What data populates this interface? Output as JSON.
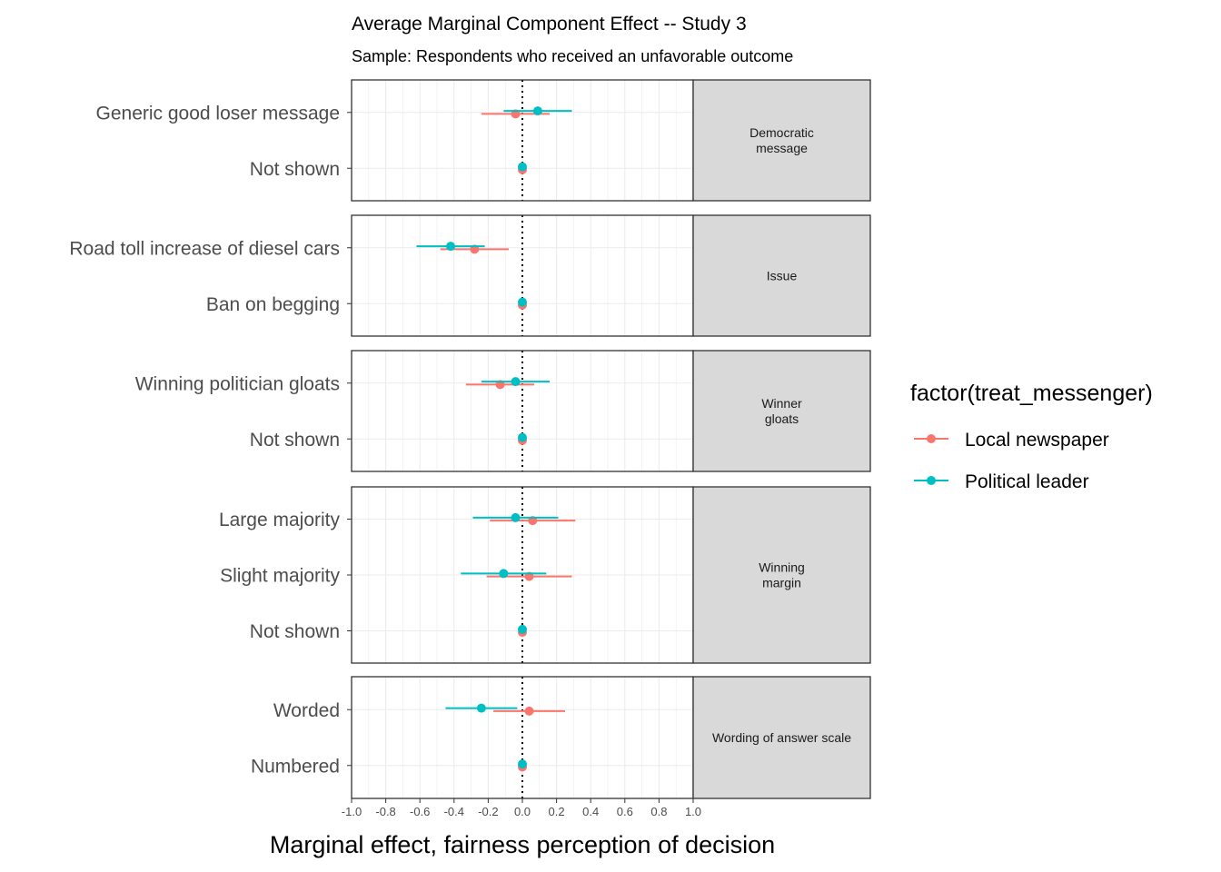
{
  "chart_data": {
    "type": "scatter",
    "title": "Average Marginal Component Effect -- Study 3",
    "subtitle": "Sample: Respondents who received an unfavorable outcome",
    "xlabel": "Marginal effect, fairness perception of decision",
    "xlim": [
      -1.0,
      1.0
    ],
    "x_ticks": [
      "-1.0",
      "-0.8",
      "-0.6",
      "-0.4",
      "-0.2",
      "0.0",
      "0.2",
      "0.4",
      "0.6",
      "0.8",
      "1.0"
    ],
    "reference_line": 0,
    "grid": true,
    "legend": {
      "title": "factor(treat_messenger)",
      "position": "right",
      "entries": [
        "Local newspaper",
        "Political leader"
      ]
    },
    "series_colors": {
      "Local newspaper": "#F8766D",
      "Political leader": "#00BFC4"
    },
    "panels": [
      {
        "strip_lines": [
          "Democratic",
          "message"
        ],
        "levels": [
          {
            "label": "Generic good loser message",
            "estimates": [
              {
                "series": "Local newspaper",
                "est": -0.04,
                "low": -0.24,
                "high": 0.16
              },
              {
                "series": "Political leader",
                "est": 0.09,
                "low": -0.11,
                "high": 0.29
              }
            ]
          },
          {
            "label": "Not shown",
            "estimates": [
              {
                "series": "Local newspaper",
                "est": 0.0,
                "low": 0.0,
                "high": 0.0
              },
              {
                "series": "Political leader",
                "est": 0.0,
                "low": 0.0,
                "high": 0.0
              }
            ]
          }
        ]
      },
      {
        "strip_lines": [
          "Issue"
        ],
        "levels": [
          {
            "label": "Road toll increase of diesel cars",
            "estimates": [
              {
                "series": "Local newspaper",
                "est": -0.28,
                "low": -0.48,
                "high": -0.08
              },
              {
                "series": "Political leader",
                "est": -0.42,
                "low": -0.62,
                "high": -0.22
              }
            ]
          },
          {
            "label": "Ban on begging",
            "estimates": [
              {
                "series": "Local newspaper",
                "est": 0.0,
                "low": 0.0,
                "high": 0.0
              },
              {
                "series": "Political leader",
                "est": 0.0,
                "low": 0.0,
                "high": 0.0
              }
            ]
          }
        ]
      },
      {
        "strip_lines": [
          "Winner",
          "gloats"
        ],
        "levels": [
          {
            "label": "Winning politician gloats",
            "estimates": [
              {
                "series": "Local newspaper",
                "est": -0.13,
                "low": -0.33,
                "high": 0.07
              },
              {
                "series": "Political leader",
                "est": -0.04,
                "low": -0.24,
                "high": 0.16
              }
            ]
          },
          {
            "label": "Not shown",
            "estimates": [
              {
                "series": "Local newspaper",
                "est": 0.0,
                "low": 0.0,
                "high": 0.0
              },
              {
                "series": "Political leader",
                "est": 0.0,
                "low": 0.0,
                "high": 0.0
              }
            ]
          }
        ]
      },
      {
        "strip_lines": [
          "Winning",
          "margin"
        ],
        "levels": [
          {
            "label": "Large majority",
            "estimates": [
              {
                "series": "Local newspaper",
                "est": 0.06,
                "low": -0.19,
                "high": 0.31
              },
              {
                "series": "Political leader",
                "est": -0.04,
                "low": -0.29,
                "high": 0.21
              }
            ]
          },
          {
            "label": "Slight majority",
            "estimates": [
              {
                "series": "Local newspaper",
                "est": 0.04,
                "low": -0.21,
                "high": 0.29
              },
              {
                "series": "Political leader",
                "est": -0.11,
                "low": -0.36,
                "high": 0.14
              }
            ]
          },
          {
            "label": "Not shown",
            "estimates": [
              {
                "series": "Local newspaper",
                "est": 0.0,
                "low": 0.0,
                "high": 0.0
              },
              {
                "series": "Political leader",
                "est": 0.0,
                "low": 0.0,
                "high": 0.0
              }
            ]
          }
        ]
      },
      {
        "strip_lines": [
          "Wording of answer scale"
        ],
        "levels": [
          {
            "label": "Worded",
            "estimates": [
              {
                "series": "Local newspaper",
                "est": 0.04,
                "low": -0.17,
                "high": 0.25
              },
              {
                "series": "Political leader",
                "est": -0.24,
                "low": -0.45,
                "high": -0.03
              }
            ]
          },
          {
            "label": "Numbered",
            "estimates": [
              {
                "series": "Local newspaper",
                "est": 0.0,
                "low": 0.0,
                "high": 0.0
              },
              {
                "series": "Political leader",
                "est": 0.0,
                "low": 0.0,
                "high": 0.0
              }
            ]
          }
        ]
      }
    ]
  }
}
